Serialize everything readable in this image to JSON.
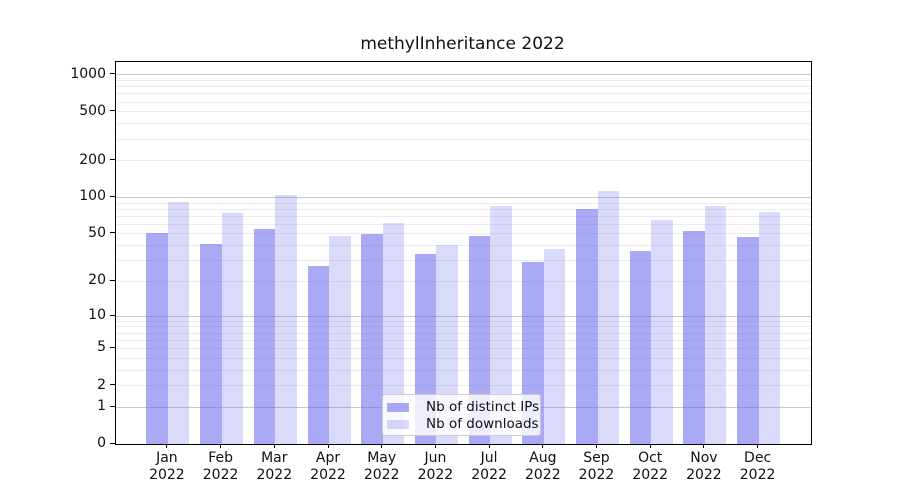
{
  "title": "methylInheritance 2022",
  "chart_data": {
    "type": "bar",
    "title": "methylInheritance 2022",
    "categories": [
      "Jan 2022",
      "Feb 2022",
      "Mar 2022",
      "Apr 2022",
      "May 2022",
      "Jun 2022",
      "Jul 2022",
      "Aug 2022",
      "Sep 2022",
      "Oct 2022",
      "Nov 2022",
      "Dec 2022"
    ],
    "x_tick_line1": [
      "Jan",
      "Feb",
      "Mar",
      "Apr",
      "May",
      "Jun",
      "Jul",
      "Aug",
      "Sep",
      "Oct",
      "Nov",
      "Dec"
    ],
    "x_tick_line2": "2022",
    "series": [
      {
        "name": "Nb of distinct IPs",
        "color": "rgba(100,100,235,0.55)",
        "values": [
          51,
          41,
          55,
          27,
          50,
          34,
          48,
          29,
          80,
          36,
          53,
          47
        ]
      },
      {
        "name": "Nb of downloads",
        "color": "rgba(100,100,235,0.24)",
        "values": [
          92,
          74,
          105,
          48,
          61,
          40,
          84,
          37,
          113,
          65,
          84,
          75
        ]
      }
    ],
    "y_axis": {
      "scale": "log1p",
      "tick_values": [
        0,
        1,
        2,
        5,
        10,
        20,
        50,
        100,
        200,
        500,
        1000
      ],
      "major_gridlines": [
        1,
        10,
        100,
        1000
      ],
      "minor_gridlines": [
        2,
        3,
        4,
        5,
        6,
        7,
        8,
        9,
        20,
        30,
        40,
        50,
        60,
        70,
        80,
        90,
        200,
        300,
        400,
        500,
        600,
        700,
        800,
        900
      ],
      "ylim": [
        0,
        1270
      ]
    },
    "grid": true,
    "legend_position": "lower center (inside plot)"
  },
  "legend": {
    "items": [
      {
        "label": "Nb of distinct IPs"
      },
      {
        "label": "Nb of downloads"
      }
    ]
  },
  "colors": {
    "bar_distinct_ips": "rgba(100,100,235,0.55)",
    "bar_downloads": "rgba(100,100,235,0.24)",
    "grid_minor": "#ececec",
    "grid_major": "#c9c9c9",
    "axis": "#000000",
    "text": "#111111",
    "legend_border": "#cccccc",
    "legend_background": "rgba(255,255,255,0.8)"
  }
}
